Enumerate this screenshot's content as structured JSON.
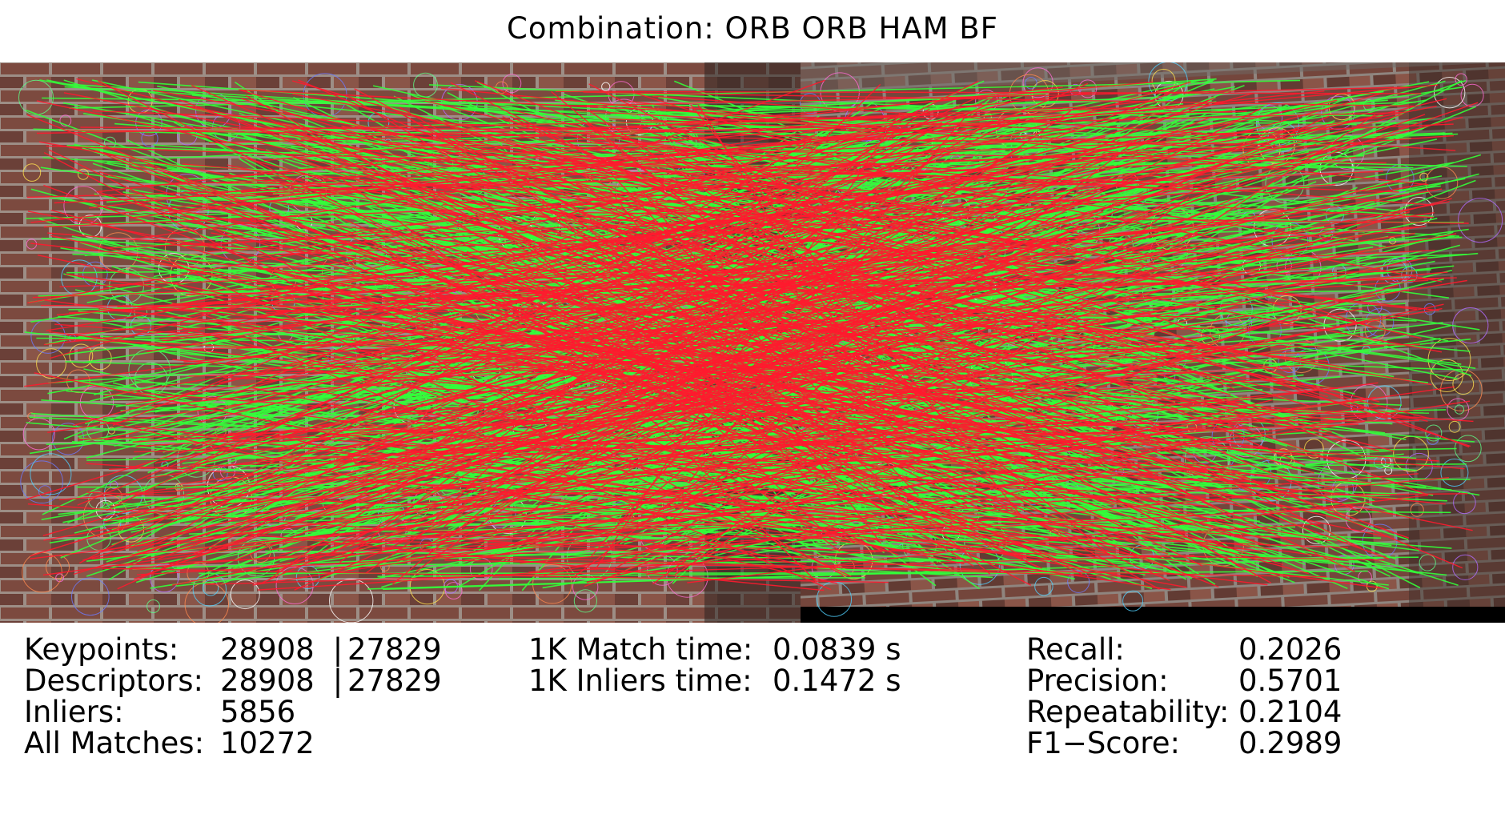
{
  "title": "Combination: ORB ORB HAM BF",
  "colors": {
    "inlier_lines": "#33ff3a",
    "outlier_lines": "#ff1a2e",
    "brick_dark": "#5a3a32",
    "brick_light": "#8a5548",
    "mortar": "#9d8e86",
    "pad_black": "#000000"
  },
  "stats_left": {
    "keypoints_label": "Keypoints:",
    "keypoints_a": "28908",
    "keypoints_b": "27829",
    "descriptors_label": "Descriptors:",
    "descriptors_a": "28908",
    "descriptors_b": "27829",
    "inliers_label": "Inliers:",
    "inliers_value": "5856",
    "all_matches_label": "All Matches:",
    "all_matches_value": "10272"
  },
  "stats_mid": {
    "match_time_label": "1K Match time:",
    "match_time_value": "0.0839 s",
    "inliers_time_label": "1K Inliers time:",
    "inliers_time_value": "0.1472 s"
  },
  "stats_right": {
    "recall_label": "Recall:",
    "recall_value": "0.2026",
    "precision_label": "Precision:",
    "precision_value": "0.5701",
    "repeatability_label": "Repeatability:",
    "repeatability_value": "0.2104",
    "f1_label": "F1−Score:",
    "f1_value": "0.2989"
  }
}
